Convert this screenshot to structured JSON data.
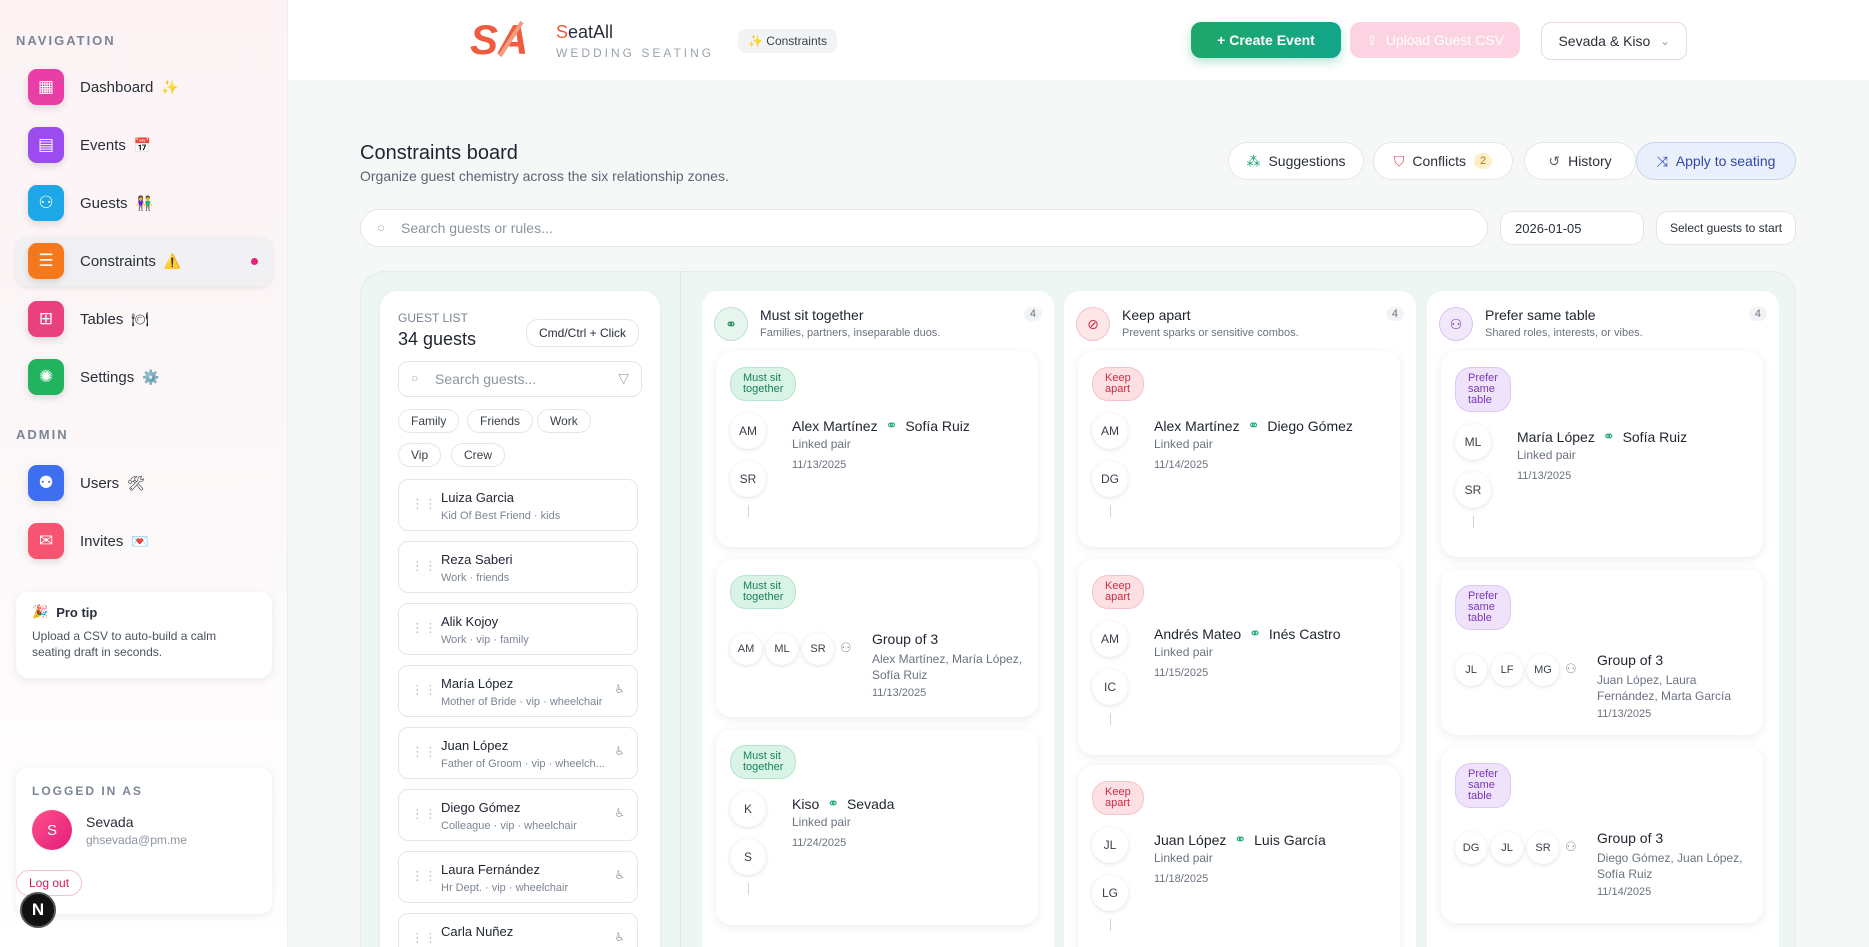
{
  "sidebar": {
    "nav_label": "NAVIGATION",
    "admin_label": "ADMIN",
    "items": [
      {
        "label": "Dashboard",
        "emoji": "✨",
        "color": "#e83ea5",
        "icon": "grid-icon"
      },
      {
        "label": "Events",
        "emoji": "📅",
        "color": "#9b4bef",
        "icon": "calendar-icon"
      },
      {
        "label": "Guests",
        "emoji": "👫",
        "color": "#1da7e6",
        "icon": "users-icon"
      },
      {
        "label": "Constraints",
        "emoji": "⚠️",
        "color": "#f6781c",
        "icon": "checklist-icon"
      },
      {
        "label": "Tables",
        "emoji": "🍽",
        "color": "#e8417e",
        "icon": "table-icon"
      },
      {
        "label": "Settings",
        "emoji": "⚙️",
        "color": "#22b35e",
        "icon": "gear-icon"
      }
    ],
    "admin_items": [
      {
        "label": "Users",
        "emoji": "🛠",
        "color": "#3e6ff0",
        "icon": "user-gear-icon"
      },
      {
        "label": "Invites",
        "emoji": "💌",
        "color": "#f65470",
        "icon": "mail-icon"
      }
    ],
    "tip": {
      "title": "Pro tip",
      "text": "Upload a CSV to auto-build a calm seating draft in seconds."
    },
    "user": {
      "label": "LOGGED IN AS",
      "initial": "S",
      "name": "Sevada",
      "email": "ghsevada@pm.me",
      "logout": "Log out"
    },
    "badge": "N"
  },
  "topbar": {
    "brand_first": "S",
    "brand_rest": "eatAll",
    "brand_sub": "WEDDING SEATING",
    "chip": "✨ Constraints",
    "create": "+ Create Event",
    "upload": "Upload Guest CSV",
    "account": "Sevada & Kiso"
  },
  "main": {
    "title": "Constraints board",
    "subtitle": "Organize guest chemistry across the six relationship zones.",
    "buttons": {
      "suggestions": "Suggestions",
      "conflicts": "Conflicts",
      "conflicts_count": "2",
      "history": "History",
      "apply": "Apply to seating"
    },
    "search_placeholder": "Search guests or rules...",
    "date": "2026-01-05",
    "select_start": "Select guests to start"
  },
  "guest_list": {
    "label": "GUEST LIST",
    "count": "34 guests",
    "cmd": "Cmd/Ctrl + Click",
    "search_placeholder": "Search guests...",
    "tags": [
      "Family",
      "Friends",
      "Work",
      "Vip",
      "Crew"
    ],
    "guests": [
      {
        "name": "Luiza Garcia",
        "meta": "Kid Of Best Friend · kids",
        "wheelchair": false
      },
      {
        "name": "Reza Saberi",
        "meta": "Work · friends",
        "wheelchair": false
      },
      {
        "name": "Alik Kojoy",
        "meta": "Work · vip · family",
        "wheelchair": false
      },
      {
        "name": "María López",
        "meta": "Mother of Bride · vip · wheelchair",
        "wheelchair": true
      },
      {
        "name": "Juan López",
        "meta": "Father of Groom · vip · wheelch...",
        "wheelchair": true
      },
      {
        "name": "Diego Gómez",
        "meta": "Colleague · vip · wheelchair",
        "wheelchair": true
      },
      {
        "name": "Laura Fernández",
        "meta": "Hr Dept. · vip · wheelchair",
        "wheelchair": true
      },
      {
        "name": "Carla Nuñez",
        "meta": "",
        "wheelchair": true
      }
    ]
  },
  "columns": [
    {
      "title": "Must sit together",
      "subtitle": "Families, partners, inseparable duos.",
      "count": "4",
      "pill": [
        "Must sit",
        "together"
      ],
      "tone": "green",
      "icon": "link-icon",
      "cards": [
        {
          "type": "pair",
          "a": "AM",
          "b": "SR",
          "name_a": "Alex Martínez",
          "name_b": "Sofía Ruiz",
          "meta": "Linked pair",
          "date": "11/13/2025"
        },
        {
          "type": "group",
          "initials": [
            "AM",
            "ML",
            "SR"
          ],
          "title": "Group of 3",
          "members": "Alex Martínez, María López, Sofía Ruiz",
          "date": "11/13/2025"
        },
        {
          "type": "pair",
          "a": "K",
          "b": "S",
          "name_a": "Kiso",
          "name_b": "Sevada",
          "meta": "Linked pair",
          "date": "11/24/2025"
        }
      ]
    },
    {
      "title": "Keep apart",
      "subtitle": "Prevent sparks or sensitive combos.",
      "count": "4",
      "pill": [
        "Keep",
        "apart"
      ],
      "tone": "red",
      "icon": "ban-icon",
      "cards": [
        {
          "type": "pair",
          "a": "AM",
          "b": "DG",
          "name_a": "Alex Martínez",
          "name_b": "Diego Gómez",
          "meta": "Linked pair",
          "date": "11/14/2025"
        },
        {
          "type": "pair",
          "a": "AM",
          "b": "IC",
          "name_a": "Andrés Mateo",
          "name_b": "Inés Castro",
          "meta": "Linked pair",
          "date": "11/15/2025"
        },
        {
          "type": "pair",
          "a": "JL",
          "b": "LG",
          "name_a": "Juan López",
          "name_b": "Luis García",
          "meta": "Linked pair",
          "date": "11/18/2025"
        }
      ]
    },
    {
      "title": "Prefer same table",
      "subtitle": "Shared roles, interests, or vibes.",
      "count": "4",
      "pill": [
        "Prefer",
        "same",
        "table"
      ],
      "tone": "purple",
      "icon": "people-icon",
      "cards": [
        {
          "type": "pair",
          "a": "ML",
          "b": "SR",
          "name_a": "María López",
          "name_b": "Sofía Ruiz",
          "meta": "Linked pair",
          "date": "11/13/2025"
        },
        {
          "type": "group",
          "initials": [
            "JL",
            "LF",
            "MG"
          ],
          "title": "Group of 3",
          "members": "Juan López, Laura Fernández, Marta García",
          "date": "11/13/2025"
        },
        {
          "type": "group",
          "initials": [
            "DG",
            "JL",
            "SR"
          ],
          "title": "Group of 3",
          "members": "Diego Gómez, Juan López, Sofía Ruiz",
          "date": "11/14/2025"
        }
      ]
    }
  ]
}
